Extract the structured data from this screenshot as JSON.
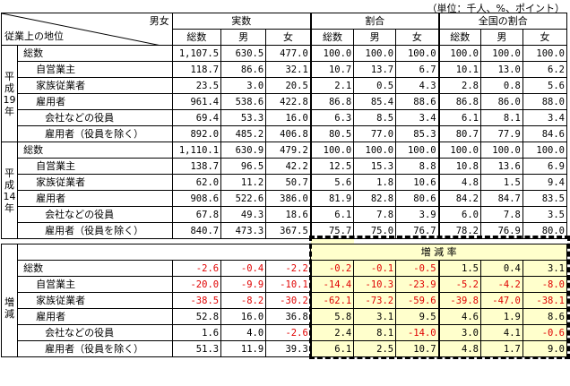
{
  "unit_note": "（単位：千人、%、ポイント）",
  "header": {
    "corner_top": "男女",
    "corner_bottom": "従業上の地位",
    "group_actual": "実数",
    "group_ratio": "割合",
    "group_national": "全国の割合",
    "sub_total": "総数",
    "sub_male": "男",
    "sub_female": "女"
  },
  "sections": [
    {
      "label_chars": [
        "平",
        "成",
        "19",
        "年"
      ],
      "rows": [
        {
          "label": "総数",
          "indent": 1,
          "vals": [
            "1,107.5",
            "630.5",
            "477.0",
            "100.0",
            "100.0",
            "100.0",
            "100.0",
            "100.0",
            "100.0"
          ]
        },
        {
          "label": "自営業主",
          "indent": 2,
          "vals": [
            "118.7",
            "86.6",
            "32.1",
            "10.7",
            "13.7",
            "6.7",
            "10.1",
            "13.0",
            "6.2"
          ]
        },
        {
          "label": "家族従業者",
          "indent": 2,
          "vals": [
            "23.5",
            "3.0",
            "20.5",
            "2.1",
            "0.5",
            "4.3",
            "2.8",
            "0.8",
            "5.6"
          ]
        },
        {
          "label": "雇用者",
          "indent": 2,
          "vals": [
            "961.4",
            "538.6",
            "422.8",
            "86.8",
            "85.4",
            "88.6",
            "86.8",
            "86.0",
            "88.0"
          ]
        },
        {
          "label": "会社などの役員",
          "indent": 3,
          "vals": [
            "69.4",
            "53.3",
            "16.0",
            "6.3",
            "8.5",
            "3.4",
            "6.1",
            "8.1",
            "3.4"
          ]
        },
        {
          "label": "雇用者（役員を除く）",
          "indent": 3,
          "vals": [
            "892.0",
            "485.2",
            "406.8",
            "80.5",
            "77.0",
            "85.3",
            "80.7",
            "77.9",
            "84.6"
          ]
        }
      ]
    },
    {
      "label_chars": [
        "平",
        "成",
        "14",
        "年"
      ],
      "rows": [
        {
          "label": "総数",
          "indent": 1,
          "vals": [
            "1,110.1",
            "630.9",
            "479.2",
            "100.0",
            "100.0",
            "100.0",
            "100.0",
            "100.0",
            "100.0"
          ]
        },
        {
          "label": "自営業主",
          "indent": 2,
          "vals": [
            "138.7",
            "96.5",
            "42.2",
            "12.5",
            "15.3",
            "8.8",
            "10.8",
            "13.6",
            "6.9"
          ]
        },
        {
          "label": "家族従業者",
          "indent": 2,
          "vals": [
            "62.0",
            "11.2",
            "50.7",
            "5.6",
            "1.8",
            "10.6",
            "4.8",
            "1.5",
            "9.4"
          ]
        },
        {
          "label": "雇用者",
          "indent": 2,
          "vals": [
            "908.6",
            "522.6",
            "386.0",
            "81.9",
            "82.8",
            "80.6",
            "84.2",
            "84.7",
            "83.5"
          ]
        },
        {
          "label": "会社などの役員",
          "indent": 3,
          "vals": [
            "67.8",
            "49.3",
            "18.6",
            "6.1",
            "7.8",
            "3.9",
            "6.0",
            "7.8",
            "3.5"
          ]
        },
        {
          "label": "雇用者（役員を除く）",
          "indent": 3,
          "vals": [
            "840.7",
            "473.3",
            "367.5",
            "75.7",
            "75.0",
            "76.7",
            "78.2",
            "76.9",
            "80.0"
          ]
        }
      ]
    },
    {
      "label_chars": [
        "増",
        "減"
      ],
      "rate_label": "増 減 率",
      "rows": [
        {
          "label": "総数",
          "indent": 1,
          "vals": [
            "-2.6",
            "-0.4",
            "-2.2",
            "-0.2",
            "-0.1",
            "-0.5",
            "1.5",
            "0.4",
            "3.1"
          ]
        },
        {
          "label": "自営業主",
          "indent": 2,
          "vals": [
            "-20.0",
            "-9.9",
            "-10.1",
            "-14.4",
            "-10.3",
            "-23.9",
            "-5.2",
            "-4.2",
            "-8.0"
          ]
        },
        {
          "label": "家族従業者",
          "indent": 2,
          "vals": [
            "-38.5",
            "-8.2",
            "-30.2",
            "-62.1",
            "-73.2",
            "-59.6",
            "-39.8",
            "-47.0",
            "-38.1"
          ]
        },
        {
          "label": "雇用者",
          "indent": 2,
          "vals": [
            "52.8",
            "16.0",
            "36.8",
            "5.8",
            "3.1",
            "9.5",
            "4.6",
            "1.9",
            "8.6"
          ]
        },
        {
          "label": "会社などの役員",
          "indent": 3,
          "vals": [
            "1.6",
            "4.0",
            "-2.6",
            "2.4",
            "8.1",
            "-14.0",
            "3.0",
            "4.1",
            "-0.6"
          ]
        },
        {
          "label": "雇用者（役員を除く）",
          "indent": 3,
          "vals": [
            "51.3",
            "11.9",
            "39.3",
            "6.1",
            "2.5",
            "10.7",
            "4.8",
            "1.7",
            "9.0"
          ]
        }
      ]
    }
  ],
  "colors": {
    "negative": "#e00000",
    "highlight": "#ffffcc"
  }
}
